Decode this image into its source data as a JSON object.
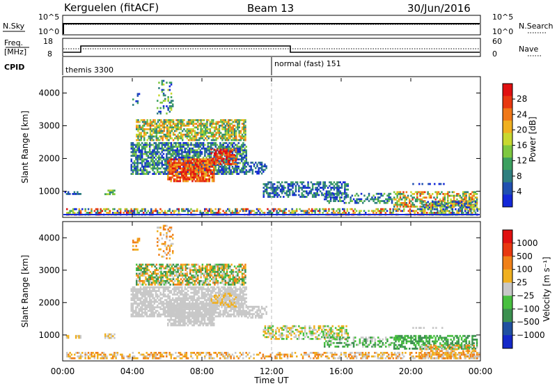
{
  "header": {
    "station": "Kerguelen (fitACF)",
    "beam": "Beam 13",
    "date": "30/Jun/2016"
  },
  "noise_panel": {
    "left_label": "N.Sky",
    "left_ticks": [
      "10^5",
      "10^0"
    ],
    "right_label": "N.Search",
    "right_ticks": [
      "10^5",
      "10^0"
    ]
  },
  "freq_panel": {
    "left_label_1": "Freq.",
    "left_label_2": "[MHz]",
    "left_ticks": [
      "18",
      "8"
    ],
    "right_label": "Nave",
    "right_ticks": [
      "60",
      "0"
    ]
  },
  "cpid": {
    "label": "CPID",
    "segments": [
      {
        "name": "themis 3300",
        "start_hour": 0
      },
      {
        "name": "normal (fast) 151",
        "start_hour": 12
      }
    ]
  },
  "chart_data": [
    {
      "type": "heatmap",
      "name": "power",
      "ylabel": "Slant Range [km]",
      "ylim": [
        200,
        4500
      ],
      "y_ticks": [
        "4000",
        "3000",
        "2000",
        "1000"
      ],
      "xlim_hours": [
        0,
        24
      ],
      "colorbar_label": "Power [dB]",
      "colorbar_ticks": [
        "28",
        "24",
        "20",
        "16",
        "12",
        "8",
        "4"
      ],
      "colors": [
        "#1428d8",
        "#2050b0",
        "#2f7f7f",
        "#3ca060",
        "#7ec840",
        "#c8d830",
        "#f0b020",
        "#f07818",
        "#e83810",
        "#e01010"
      ]
    },
    {
      "type": "heatmap",
      "name": "velocity",
      "ylabel": "Slant Range [km]",
      "ylim": [
        200,
        4500
      ],
      "y_ticks": [
        "4000",
        "3000",
        "2000",
        "1000"
      ],
      "xlim_hours": [
        0,
        24
      ],
      "xlabel": "Time UT",
      "x_ticks": [
        "00:00",
        "04:00",
        "08:00",
        "12:00",
        "16:00",
        "20:00",
        "00:00"
      ],
      "colorbar_label": "Velocity [m s⁻¹]",
      "colorbar_ticks": [
        "1000",
        "500",
        "100",
        "25",
        "−25",
        "−100",
        "−500",
        "−1000"
      ],
      "colors": [
        "#1428c8",
        "#2050a0",
        "#3c9050",
        "#48c040",
        "#c8c8c8",
        "#f0b020",
        "#f08018",
        "#e83810",
        "#e01010"
      ]
    }
  ]
}
